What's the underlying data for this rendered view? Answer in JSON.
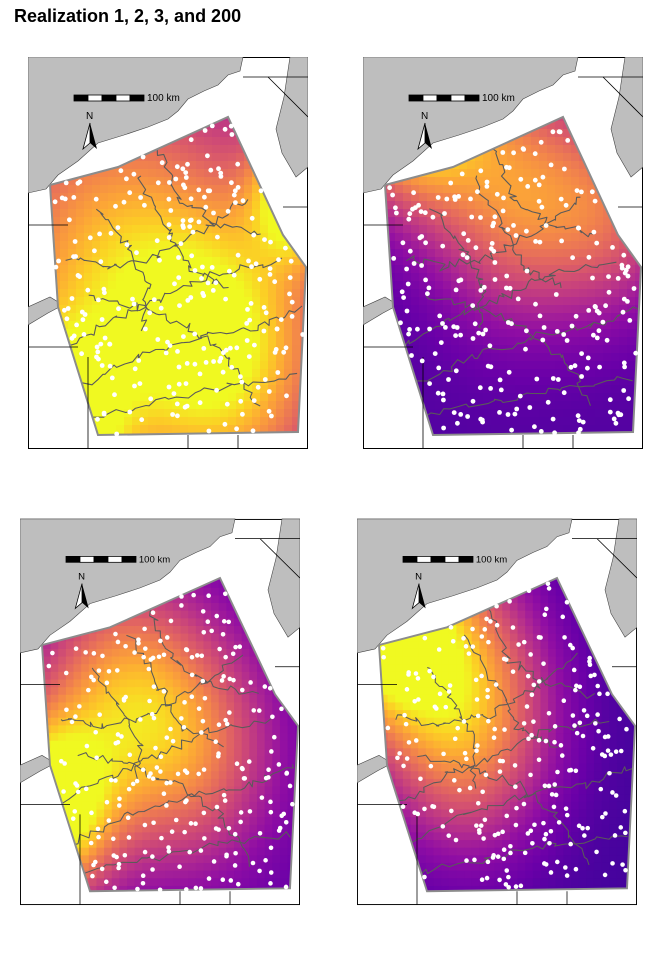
{
  "figure": {
    "title": "Realization 1, 2, 3, and 200"
  },
  "panels": [
    {
      "id": "realization-1",
      "scale_label": "100 km",
      "north_label": "N",
      "hotspots": [
        [
          0.1,
          0.95,
          0.9,
          0.22
        ],
        [
          0.97,
          0.35,
          0.8,
          0.16
        ],
        [
          0.7,
          0.75,
          0.65,
          0.35
        ],
        [
          0.3,
          0.55,
          0.55,
          0.45
        ]
      ],
      "base": 0.28
    },
    {
      "id": "realization-2",
      "scale_label": "100 km",
      "north_label": "N",
      "hotspots": [
        [
          0.18,
          0.1,
          1.0,
          0.25
        ],
        [
          0.55,
          0.35,
          0.55,
          0.3
        ],
        [
          0.9,
          0.4,
          0.35,
          0.25
        ]
      ],
      "base": 0.15
    },
    {
      "id": "realization-3",
      "scale_label": "100 km",
      "north_label": "N",
      "hotspots": [
        [
          0.1,
          0.75,
          1.0,
          0.22
        ],
        [
          0.35,
          0.45,
          0.5,
          0.3
        ],
        [
          0.6,
          0.6,
          0.45,
          0.3
        ]
      ],
      "base": 0.18
    },
    {
      "id": "realization-200",
      "scale_label": "100 km",
      "north_label": "N",
      "hotspots": [
        [
          0.08,
          0.25,
          1.0,
          0.25
        ],
        [
          0.35,
          0.4,
          0.5,
          0.3
        ],
        [
          0.4,
          0.6,
          0.35,
          0.3
        ]
      ],
      "base": 0.12
    }
  ],
  "colors": {
    "land": "#bebebe",
    "boundary": "#000000",
    "contours": "#5a5a5a",
    "points": "#ffffff",
    "palette": [
      "#0d0887",
      "#3a049a",
      "#6a00a8",
      "#8f0da4",
      "#b12a90",
      "#cc4778",
      "#e16462",
      "#f2844b",
      "#fca636",
      "#fcce25",
      "#f0f921"
    ]
  }
}
